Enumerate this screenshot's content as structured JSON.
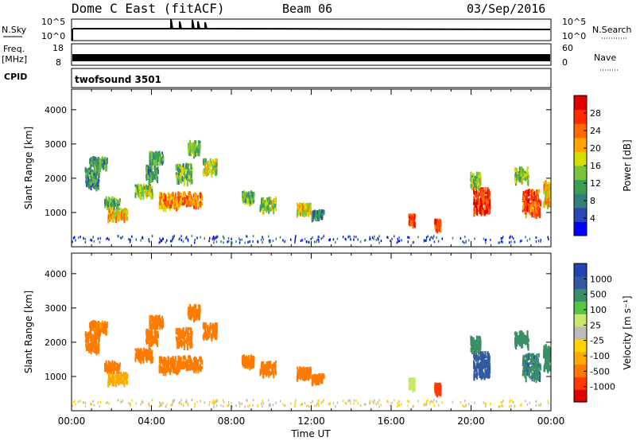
{
  "header": {
    "radar": "Dome C East (fitACF)",
    "beam": "Beam 06",
    "date": "03/Sep/2016"
  },
  "status_panels": {
    "nsky": {
      "label": "N.Sky",
      "ticks": [
        "10^5",
        "10^0"
      ]
    },
    "nsearch": {
      "label": "N.Search",
      "ticks": [
        "10^5",
        "10^0"
      ]
    },
    "freq": {
      "label_top": "Freq.",
      "label_bottom": "[MHz]",
      "ticks": [
        "18",
        "8"
      ]
    },
    "nave": {
      "label": "Nave",
      "ticks": [
        "60",
        "0"
      ]
    },
    "cpid": {
      "label": "CPID",
      "program": "twofsound 3501"
    }
  },
  "chart_data": [
    {
      "type": "heatmap",
      "name": "power",
      "xlabel": "",
      "ylabel": "Slant Range [km]",
      "xlim": [
        0,
        24
      ],
      "ylim": [
        0,
        4600
      ],
      "yticks": [
        1000,
        2000,
        3000,
        4000
      ],
      "colorbar": {
        "label": "Power [dB]",
        "ticks": [
          "28",
          "24",
          "20",
          "16",
          "12",
          "8",
          "4"
        ],
        "colors": [
          "#0000ff",
          "#2a45b5",
          "#337f7a",
          "#3b9e55",
          "#7ac43a",
          "#d8dd00",
          "#ffa500",
          "#ff6a00",
          "#ff2a00",
          "#e00000"
        ]
      },
      "clusters": [
        {
          "t": 1.0,
          "r": 2050,
          "dt": 0.7,
          "dr": 550,
          "v": 10
        },
        {
          "t": 1.3,
          "r": 2500,
          "dt": 0.9,
          "dr": 300,
          "v": 10
        },
        {
          "t": 2.3,
          "r": 1000,
          "dt": 1.0,
          "dr": 300,
          "v": 18
        },
        {
          "t": 2.0,
          "r": 1350,
          "dt": 0.8,
          "dr": 250,
          "v": 12
        },
        {
          "t": 3.6,
          "r": 1700,
          "dt": 0.9,
          "dr": 300,
          "v": 14
        },
        {
          "t": 4.0,
          "r": 2200,
          "dt": 0.6,
          "dr": 400,
          "v": 10
        },
        {
          "t": 4.2,
          "r": 2650,
          "dt": 0.7,
          "dr": 300,
          "v": 10
        },
        {
          "t": 4.9,
          "r": 1400,
          "dt": 1.1,
          "dr": 400,
          "v": 20
        },
        {
          "t": 5.9,
          "r": 1450,
          "dt": 1.2,
          "dr": 350,
          "v": 22
        },
        {
          "t": 5.6,
          "r": 2200,
          "dt": 0.8,
          "dr": 500,
          "v": 12
        },
        {
          "t": 6.1,
          "r": 2950,
          "dt": 0.6,
          "dr": 350,
          "v": 12
        },
        {
          "t": 6.9,
          "r": 2400,
          "dt": 0.7,
          "dr": 400,
          "v": 16
        },
        {
          "t": 8.8,
          "r": 1500,
          "dt": 0.6,
          "dr": 300,
          "v": 12
        },
        {
          "t": 9.8,
          "r": 1300,
          "dt": 0.8,
          "dr": 350,
          "v": 14
        },
        {
          "t": 11.6,
          "r": 1150,
          "dt": 0.7,
          "dr": 300,
          "v": 18
        },
        {
          "t": 12.3,
          "r": 1000,
          "dt": 0.6,
          "dr": 200,
          "v": 8
        },
        {
          "t": 17.0,
          "r": 850,
          "dt": 0.3,
          "dr": 250,
          "v": 24
        },
        {
          "t": 18.3,
          "r": 700,
          "dt": 0.3,
          "dr": 250,
          "v": 24
        },
        {
          "t": 20.5,
          "r": 1400,
          "dt": 0.8,
          "dr": 700,
          "v": 26
        },
        {
          "t": 20.2,
          "r": 2000,
          "dt": 0.5,
          "dr": 400,
          "v": 14
        },
        {
          "t": 23.0,
          "r": 1350,
          "dt": 0.9,
          "dr": 700,
          "v": 24
        },
        {
          "t": 22.5,
          "r": 2150,
          "dt": 0.7,
          "dr": 400,
          "v": 14
        },
        {
          "t": 23.8,
          "r": 1600,
          "dt": 0.4,
          "dr": 700,
          "v": 18
        }
      ],
      "ground_scatter_range": [
        150,
        350
      ]
    },
    {
      "type": "heatmap",
      "name": "velocity",
      "xlabel": "Time UT",
      "ylabel": "Slant Range [km]",
      "xlim": [
        0,
        24
      ],
      "ylim": [
        0,
        4600
      ],
      "yticks": [
        1000,
        2000,
        3000,
        4000
      ],
      "xticks": [
        "00:00",
        "04:00",
        "08:00",
        "12:00",
        "16:00",
        "20:00",
        "00:00"
      ],
      "colorbar": {
        "label": "Velocity [m s⁻¹]",
        "ticks": [
          "1000",
          "500",
          "100",
          "25",
          "-25",
          "-100",
          "-500",
          "-1000"
        ],
        "colors": [
          "#e00000",
          "#ff3a00",
          "#ff7a00",
          "#ffaa00",
          "#ffd200",
          "#bbbbbb",
          "#c8e86a",
          "#55c640",
          "#3a8f64",
          "#335aa0",
          "#2244b0"
        ]
      },
      "clusters": [
        {
          "t": 1.0,
          "r": 2050,
          "dt": 0.7,
          "dr": 550,
          "v": -180
        },
        {
          "t": 1.3,
          "r": 2500,
          "dt": 0.9,
          "dr": 300,
          "v": -120
        },
        {
          "t": 2.3,
          "r": 1000,
          "dt": 1.0,
          "dr": 300,
          "v": -50
        },
        {
          "t": 2.0,
          "r": 1350,
          "dt": 0.8,
          "dr": 250,
          "v": -300
        },
        {
          "t": 3.6,
          "r": 1700,
          "dt": 0.9,
          "dr": 300,
          "v": -300
        },
        {
          "t": 4.0,
          "r": 2200,
          "dt": 0.6,
          "dr": 400,
          "v": -250
        },
        {
          "t": 4.2,
          "r": 2650,
          "dt": 0.7,
          "dr": 300,
          "v": -200
        },
        {
          "t": 4.9,
          "r": 1400,
          "dt": 1.1,
          "dr": 400,
          "v": -350
        },
        {
          "t": 5.9,
          "r": 1450,
          "dt": 1.2,
          "dr": 350,
          "v": -400
        },
        {
          "t": 5.6,
          "r": 2200,
          "dt": 0.8,
          "dr": 500,
          "v": -300
        },
        {
          "t": 6.1,
          "r": 2950,
          "dt": 0.6,
          "dr": 350,
          "v": -250
        },
        {
          "t": 6.9,
          "r": 2400,
          "dt": 0.7,
          "dr": 400,
          "v": -250
        },
        {
          "t": 8.8,
          "r": 1500,
          "dt": 0.6,
          "dr": 300,
          "v": -200
        },
        {
          "t": 9.8,
          "r": 1300,
          "dt": 0.8,
          "dr": 350,
          "v": -300
        },
        {
          "t": 11.6,
          "r": 1150,
          "dt": 0.7,
          "dr": 300,
          "v": -350
        },
        {
          "t": 12.3,
          "r": 1000,
          "dt": 0.6,
          "dr": 200,
          "v": -150
        },
        {
          "t": 17.0,
          "r": 850,
          "dt": 0.3,
          "dr": 250,
          "v": 50
        },
        {
          "t": 18.3,
          "r": 700,
          "dt": 0.3,
          "dr": 250,
          "v": -700
        },
        {
          "t": 20.5,
          "r": 1400,
          "dt": 0.8,
          "dr": 700,
          "v": 700
        },
        {
          "t": 20.2,
          "r": 2000,
          "dt": 0.5,
          "dr": 400,
          "v": 300
        },
        {
          "t": 23.0,
          "r": 1350,
          "dt": 0.9,
          "dr": 700,
          "v": 450
        },
        {
          "t": 22.5,
          "r": 2150,
          "dt": 0.7,
          "dr": 400,
          "v": 150
        },
        {
          "t": 23.8,
          "r": 1600,
          "dt": 0.4,
          "dr": 700,
          "v": 250
        }
      ],
      "ground_scatter_range": [
        150,
        350
      ]
    }
  ]
}
